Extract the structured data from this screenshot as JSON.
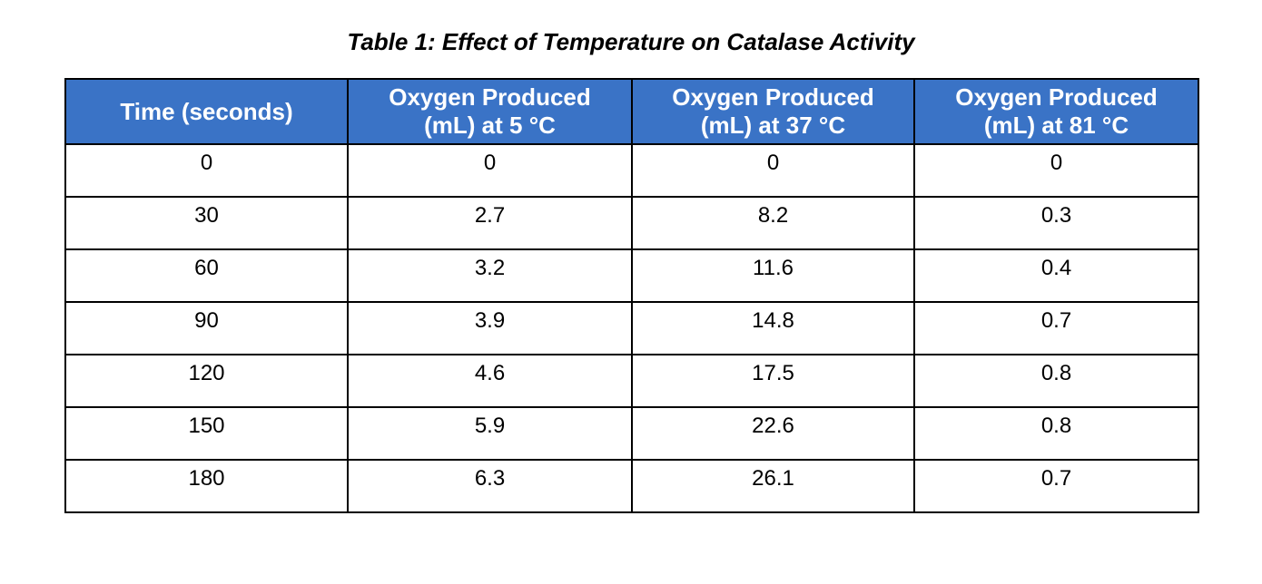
{
  "title": "Table 1: Effect of Temperature on Catalase Activity",
  "headers": [
    {
      "line1": "Time (seconds)",
      "line2": ""
    },
    {
      "line1": "Oxygen Produced",
      "line2": "(mL) at 5 °C"
    },
    {
      "line1": "Oxygen Produced",
      "line2": "(mL) at 37 °C"
    },
    {
      "line1": "Oxygen Produced",
      "line2": "(mL) at 81 °C"
    }
  ],
  "rows": [
    [
      "0",
      "0",
      "0",
      "0"
    ],
    [
      "30",
      "2.7",
      "8.2",
      "0.3"
    ],
    [
      "60",
      "3.2",
      "11.6",
      "0.4"
    ],
    [
      "90",
      "3.9",
      "14.8",
      "0.7"
    ],
    [
      "120",
      "4.6",
      "17.5",
      "0.8"
    ],
    [
      "150",
      "5.9",
      "22.6",
      "0.8"
    ],
    [
      "180",
      "6.3",
      "26.1",
      "0.7"
    ]
  ],
  "colors": {
    "header_bg": "#3a73c6",
    "header_text": "#ffffff",
    "border": "#000000"
  }
}
